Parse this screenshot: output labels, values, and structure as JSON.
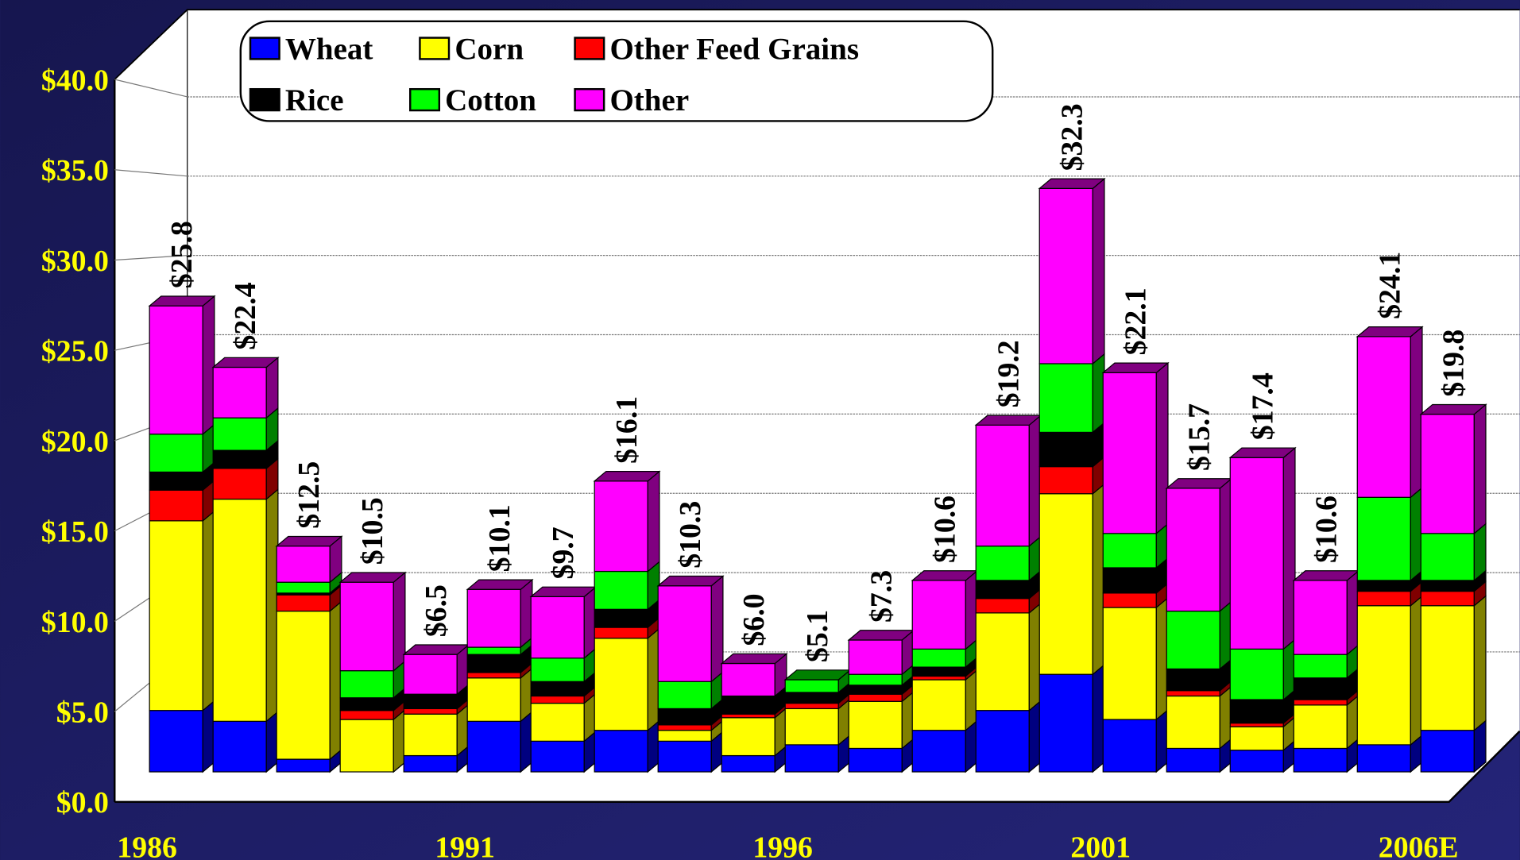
{
  "chart_data": {
    "type": "bar3d-stacked",
    "categories": [
      "1986",
      null,
      null,
      null,
      null,
      "1991",
      null,
      null,
      null,
      null,
      "1996",
      null,
      null,
      null,
      null,
      "2001",
      null,
      null,
      null,
      null,
      "2006E"
    ],
    "series": [
      {
        "name": "Wheat",
        "color": "#0000ff",
        "values": [
          3.4,
          2.8,
          0.7,
          0,
          0.9,
          2.8,
          1.7,
          2.3,
          1.7,
          0.9,
          1.5,
          1.3,
          2.3,
          3.4,
          5.4,
          2.9,
          1.3,
          1.2,
          1.3,
          1.5,
          2.3
        ]
      },
      {
        "name": "Corn",
        "color": "#ffff00",
        "values": [
          10.5,
          12.3,
          8.2,
          2.9,
          2.3,
          2.4,
          2.1,
          5.1,
          0.6,
          2.1,
          2.0,
          2.6,
          2.8,
          5.4,
          10.0,
          6.2,
          2.9,
          1.3,
          2.4,
          7.7,
          6.9
        ]
      },
      {
        "name": "Other Feed Grains",
        "color": "#ff0000",
        "values": [
          1.7,
          1.7,
          0.9,
          0.5,
          0.3,
          0.3,
          0.4,
          0.6,
          0.3,
          0.2,
          0.3,
          0.4,
          0.2,
          0.8,
          1.5,
          0.8,
          0.3,
          0.2,
          0.3,
          0.8,
          0.8
        ]
      },
      {
        "name": "Rice",
        "color": "#000000",
        "values": [
          1.0,
          1.0,
          0.1,
          0.7,
          0.8,
          1.0,
          0.8,
          1.0,
          0.9,
          1.0,
          0.6,
          0.5,
          0.5,
          1.0,
          1.9,
          1.4,
          1.2,
          1.3,
          1.2,
          0.6,
          0.6
        ]
      },
      {
        "name": "Cotton",
        "color": "#00ff00",
        "values": [
          2.1,
          1.8,
          0.6,
          1.5,
          0,
          0.4,
          1.3,
          2.1,
          1.5,
          0,
          0.7,
          0.6,
          1.0,
          1.9,
          3.8,
          1.9,
          3.2,
          2.8,
          1.3,
          4.6,
          2.6
        ]
      },
      {
        "name": "Other",
        "color": "#ff00ff",
        "values": [
          7.1,
          2.8,
          2.0,
          4.9,
          2.2,
          3.2,
          3.4,
          5.0,
          5.3,
          1.8,
          0,
          1.9,
          3.8,
          6.7,
          9.7,
          8.9,
          6.8,
          10.6,
          4.1,
          8.9,
          6.6
        ]
      }
    ],
    "totals": [
      25.8,
      22.4,
      12.5,
      10.5,
      6.5,
      10.1,
      9.7,
      16.1,
      10.3,
      6.0,
      5.1,
      7.3,
      10.6,
      19.2,
      32.3,
      22.1,
      15.7,
      17.4,
      10.6,
      24.1,
      19.8
    ],
    "total_labels": [
      "$25.8",
      "$22.4",
      "$12.5",
      "$10.5",
      "$6.5",
      "$10.1",
      "$9.7",
      "$16.1",
      "$10.3",
      "$6.0",
      "$5.1",
      "$7.3",
      "$10.6",
      "$19.2",
      "$32.3",
      "$22.1",
      "$15.7",
      "$17.4",
      "$10.6",
      "$24.1",
      "$19.8"
    ],
    "ylim": [
      0,
      40
    ],
    "yticks": [
      {
        "value": 0,
        "label": "$0.0"
      },
      {
        "value": 5,
        "label": "$5.0"
      },
      {
        "value": 10,
        "label": "$10.0"
      },
      {
        "value": 15,
        "label": "$15.0"
      },
      {
        "value": 20,
        "label": "$20.0"
      },
      {
        "value": 25,
        "label": "$25.0"
      },
      {
        "value": 30,
        "label": "$30.0"
      },
      {
        "value": 35,
        "label": "$35.0"
      },
      {
        "value": 40,
        "label": "$40.0"
      }
    ],
    "grid": true
  }
}
